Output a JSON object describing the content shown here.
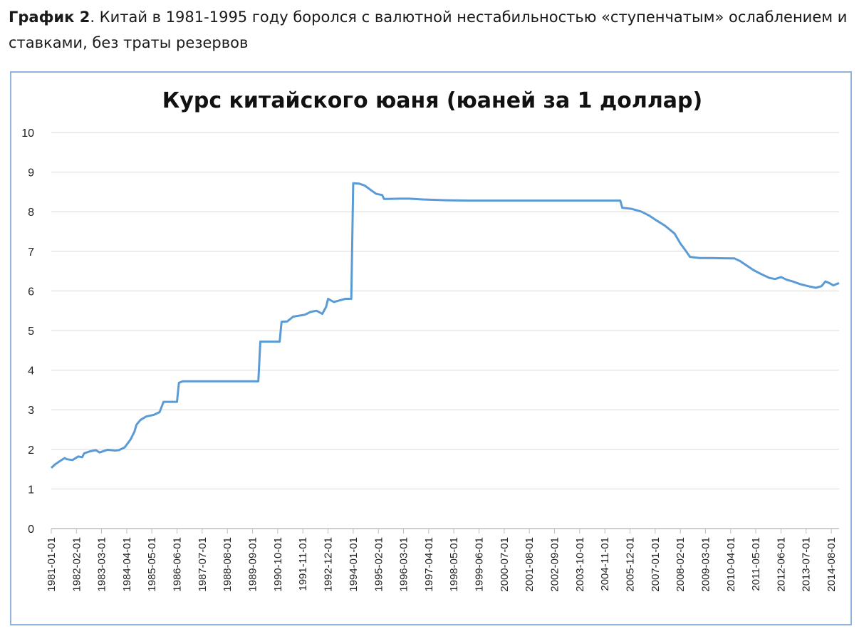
{
  "caption": {
    "label": "График 2",
    "text": ". Китай в 1981-1995 году боролся с валютной нестабильностью «ступенчатым» ослаблением и ставками, без траты резервов"
  },
  "chart_data": {
    "type": "line",
    "title": "Курс китайского юаня (юаней за 1 доллар)",
    "ylim": [
      0,
      10
    ],
    "yticks": [
      "0",
      "1",
      "2",
      "3",
      "4",
      "5",
      "6",
      "7",
      "8",
      "9",
      "10"
    ],
    "xrange": [
      "1981-01-01",
      "2014-12-01"
    ],
    "xticks": [
      "1981-01-01",
      "1982-02-01",
      "1983-03-01",
      "1984-04-01",
      "1985-05-01",
      "1986-06-01",
      "1987-07-01",
      "1988-08-01",
      "1989-09-01",
      "1990-10-01",
      "1991-11-01",
      "1992-12-01",
      "1994-01-01",
      "1995-02-01",
      "1996-03-01",
      "1997-04-01",
      "1998-05-01",
      "1999-06-01",
      "2000-07-01",
      "2001-08-01",
      "2002-09-01",
      "2003-10-01",
      "2004-11-01",
      "2005-12-01",
      "2007-01-01",
      "2008-02-01",
      "2009-03-01",
      "2010-04-01",
      "2011-05-01",
      "2012-06-01",
      "2013-07-01",
      "2014-08-01"
    ],
    "grid": true,
    "line_color": "#5b9bd5",
    "series": [
      {
        "points": [
          [
            "1981-01-01",
            1.53
          ],
          [
            "1981-03-01",
            1.62
          ],
          [
            "1981-06-01",
            1.72
          ],
          [
            "1981-08-01",
            1.78
          ],
          [
            "1981-09-01",
            1.75
          ],
          [
            "1981-12-01",
            1.73
          ],
          [
            "1982-03-01",
            1.82
          ],
          [
            "1982-05-01",
            1.8
          ],
          [
            "1982-06-01",
            1.9
          ],
          [
            "1982-09-01",
            1.95
          ],
          [
            "1982-12-01",
            1.98
          ],
          [
            "1983-02-01",
            1.92
          ],
          [
            "1983-06-01",
            1.99
          ],
          [
            "1983-10-01",
            1.97
          ],
          [
            "1983-12-01",
            1.98
          ],
          [
            "1984-03-01",
            2.05
          ],
          [
            "1984-06-01",
            2.25
          ],
          [
            "1984-08-01",
            2.45
          ],
          [
            "1984-09-01",
            2.62
          ],
          [
            "1984-11-01",
            2.74
          ],
          [
            "1985-02-01",
            2.83
          ],
          [
            "1985-06-01",
            2.87
          ],
          [
            "1985-09-01",
            2.94
          ],
          [
            "1985-11-01",
            3.2
          ],
          [
            "1986-04-01",
            3.2
          ],
          [
            "1986-06-01",
            3.2
          ],
          [
            "1986-07-01",
            3.68
          ],
          [
            "1986-09-01",
            3.72
          ],
          [
            "1987-06-01",
            3.72
          ],
          [
            "1988-06-01",
            3.72
          ],
          [
            "1989-12-01",
            3.72
          ],
          [
            "1990-01-01",
            4.72
          ],
          [
            "1990-11-01",
            4.72
          ],
          [
            "1990-12-01",
            5.22
          ],
          [
            "1991-03-01",
            5.23
          ],
          [
            "1991-06-01",
            5.35
          ],
          [
            "1991-12-01",
            5.4
          ],
          [
            "1992-03-01",
            5.47
          ],
          [
            "1992-06-01",
            5.5
          ],
          [
            "1992-09-01",
            5.42
          ],
          [
            "1992-11-01",
            5.6
          ],
          [
            "1992-12-01",
            5.8
          ],
          [
            "1993-03-01",
            5.72
          ],
          [
            "1993-06-01",
            5.76
          ],
          [
            "1993-09-01",
            5.8
          ],
          [
            "1993-12-01",
            5.8
          ],
          [
            "1994-01-01",
            8.72
          ],
          [
            "1994-04-01",
            8.71
          ],
          [
            "1994-07-01",
            8.66
          ],
          [
            "1994-10-01",
            8.55
          ],
          [
            "1995-01-01",
            8.45
          ],
          [
            "1995-04-01",
            8.42
          ],
          [
            "1995-05-01",
            8.32
          ],
          [
            "1996-01-01",
            8.33
          ],
          [
            "1996-06-01",
            8.33
          ],
          [
            "1997-01-01",
            8.31
          ],
          [
            "1998-01-01",
            8.29
          ],
          [
            "1999-01-01",
            8.28
          ],
          [
            "2000-01-01",
            8.28
          ],
          [
            "2002-01-01",
            8.28
          ],
          [
            "2004-01-01",
            8.28
          ],
          [
            "2005-07-01",
            8.28
          ],
          [
            "2005-08-01",
            8.1
          ],
          [
            "2006-01-01",
            8.07
          ],
          [
            "2006-06-01",
            8.0
          ],
          [
            "2006-10-01",
            7.9
          ],
          [
            "2007-01-01",
            7.8
          ],
          [
            "2007-06-01",
            7.65
          ],
          [
            "2007-11-01",
            7.45
          ],
          [
            "2008-02-01",
            7.2
          ],
          [
            "2008-05-01",
            7.0
          ],
          [
            "2008-07-01",
            6.86
          ],
          [
            "2008-12-01",
            6.83
          ],
          [
            "2009-06-01",
            6.83
          ],
          [
            "2010-06-01",
            6.82
          ],
          [
            "2010-09-01",
            6.75
          ],
          [
            "2010-12-01",
            6.65
          ],
          [
            "2011-04-01",
            6.52
          ],
          [
            "2011-08-01",
            6.42
          ],
          [
            "2011-12-01",
            6.33
          ],
          [
            "2012-03-01",
            6.3
          ],
          [
            "2012-06-01",
            6.35
          ],
          [
            "2012-09-01",
            6.28
          ],
          [
            "2012-12-01",
            6.24
          ],
          [
            "2013-04-01",
            6.17
          ],
          [
            "2013-08-01",
            6.12
          ],
          [
            "2013-12-01",
            6.08
          ],
          [
            "2014-03-01",
            6.12
          ],
          [
            "2014-05-01",
            6.24
          ],
          [
            "2014-07-01",
            6.2
          ],
          [
            "2014-09-01",
            6.14
          ],
          [
            "2014-12-01",
            6.2
          ]
        ]
      }
    ]
  }
}
